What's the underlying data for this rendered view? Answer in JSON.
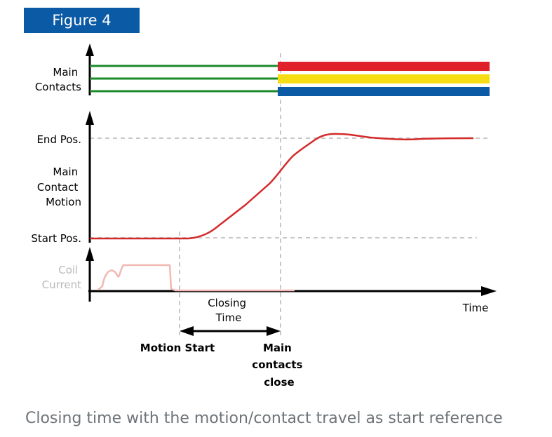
{
  "figure_label": "Figure 4",
  "caption": "Closing time with the motion/contact travel as start reference",
  "labels": {
    "main_contacts": [
      "Main",
      "Contacts"
    ],
    "end_pos": "End Pos.",
    "main_contact_motion": [
      "Main",
      "Contact",
      "Motion"
    ],
    "start_pos": "Start Pos.",
    "coil_current": [
      "Coil",
      "Current"
    ],
    "time_axis": "Time",
    "closing_time": [
      "Closing",
      "Time"
    ],
    "motion_start": "Motion Start",
    "main_contacts_close": [
      "Main",
      "contacts",
      "close"
    ]
  },
  "colors": {
    "badge": "#0b5aa5",
    "open_contacts": "#1b8a2a",
    "phase_red": "#e0202a",
    "phase_yellow": "#f6dc12",
    "phase_blue": "#0a5aa5",
    "motion_curve": "#d42a2a",
    "coil_curve": "#f2b9b5",
    "guide": "#c8c8c8",
    "coil_label": "#b8b8b8",
    "caption": "#6d7478"
  },
  "icons": [
    "up-arrow-icon",
    "right-arrow-icon",
    "double-headed-arrow-icon"
  ]
}
